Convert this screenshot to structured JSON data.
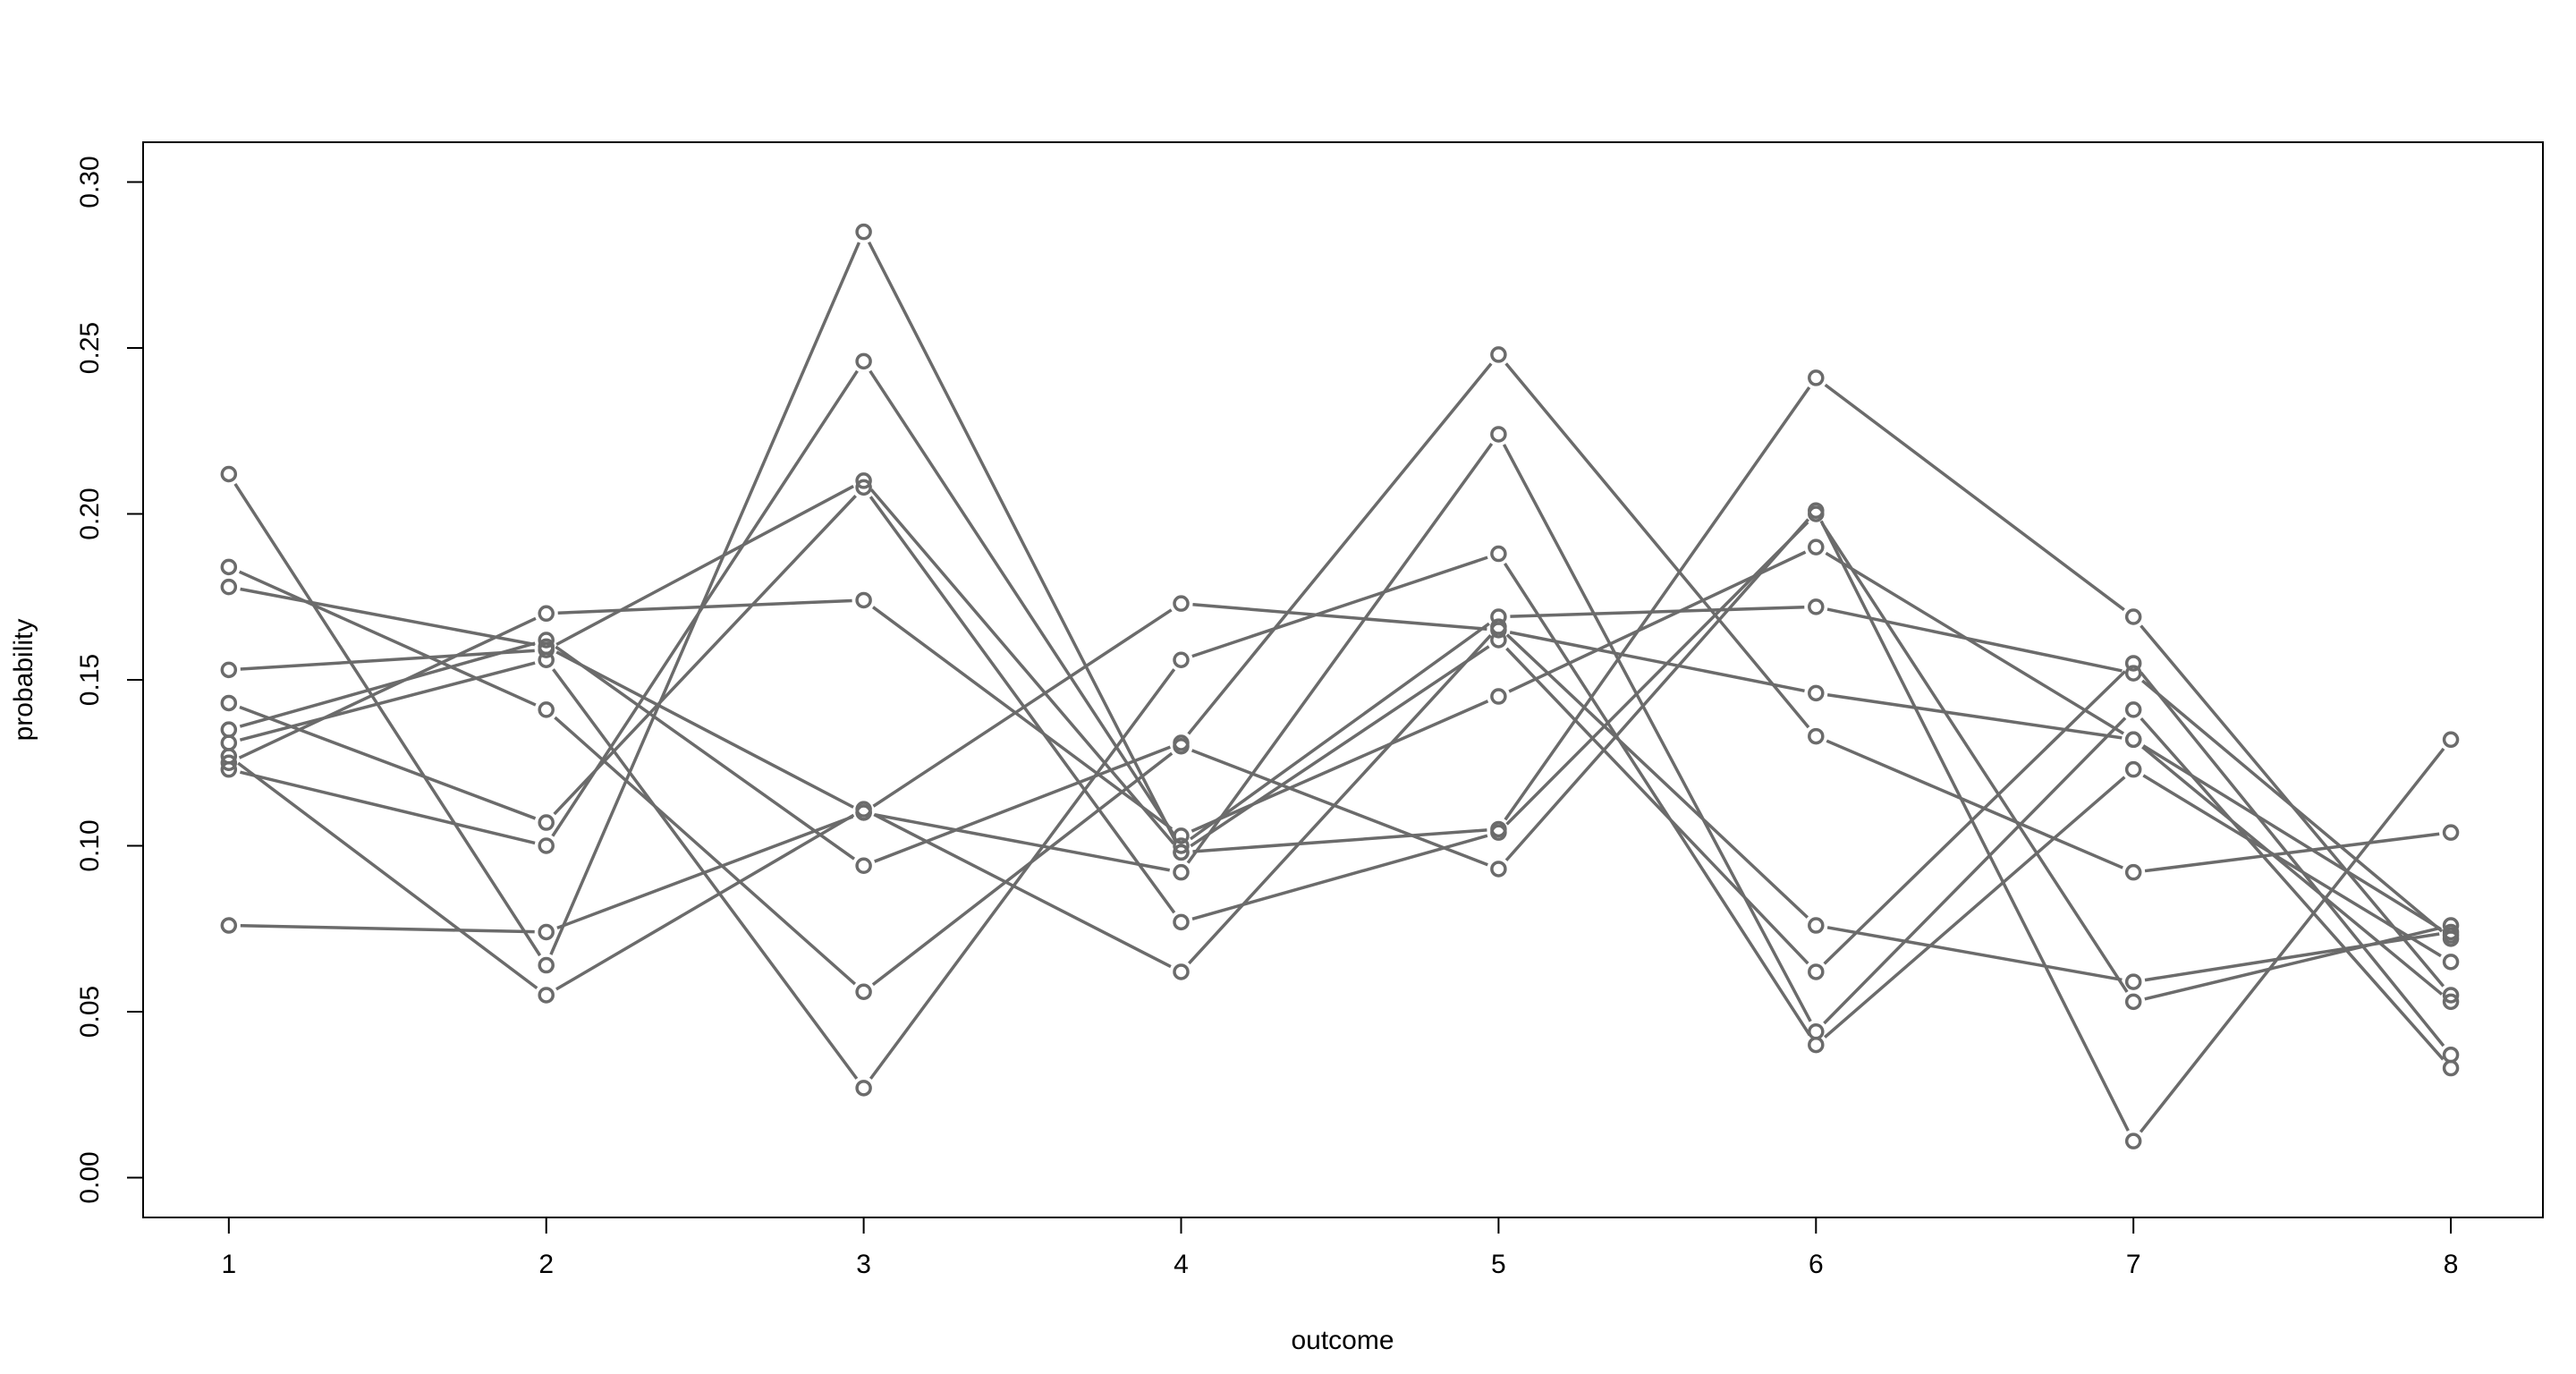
{
  "chart_data": {
    "type": "line",
    "title": "",
    "xlabel": "outcome",
    "ylabel": "probability",
    "x": [
      1,
      2,
      3,
      4,
      5,
      6,
      7,
      8
    ],
    "xticks": [
      "1",
      "2",
      "3",
      "4",
      "5",
      "6",
      "7",
      "8"
    ],
    "yticks": [
      "0.00",
      "0.05",
      "0.10",
      "0.15",
      "0.20",
      "0.25",
      "0.30"
    ],
    "xlim": [
      0.73,
      8.29
    ],
    "ylim": [
      -0.012,
      0.312
    ],
    "grid": false,
    "legend": "none",
    "colors": {
      "series": "#6b6b6b",
      "axis": "#000000"
    },
    "series": [
      {
        "values": [
          0.212,
          0.064,
          0.285,
          0.098,
          0.105,
          0.241,
          0.169,
          0.055
        ]
      },
      {
        "values": [
          0.184,
          0.141,
          0.056,
          0.13,
          0.093,
          0.201,
          0.011,
          0.132
        ]
      },
      {
        "values": [
          0.178,
          0.16,
          0.11,
          0.092,
          0.224,
          0.044,
          0.141,
          0.033
        ]
      },
      {
        "values": [
          0.153,
          0.159,
          0.21,
          0.098,
          0.162,
          0.062,
          0.155,
          0.037
        ]
      },
      {
        "values": [
          0.143,
          0.107,
          0.208,
          0.077,
          0.104,
          0.2,
          0.053,
          0.076
        ]
      },
      {
        "values": [
          0.135,
          0.162,
          0.094,
          0.131,
          0.248,
          0.133,
          0.092,
          0.104
        ]
      },
      {
        "values": [
          0.131,
          0.156,
          0.027,
          0.156,
          0.188,
          0.04,
          0.123,
          0.065
        ]
      },
      {
        "values": [
          0.127,
          0.055,
          0.111,
          0.062,
          0.166,
          0.076,
          0.059,
          0.074
        ]
      },
      {
        "values": [
          0.125,
          0.17,
          0.174,
          0.103,
          0.145,
          0.19,
          0.132,
          0.053
        ]
      },
      {
        "values": [
          0.123,
          0.1,
          0.246,
          0.1,
          0.169,
          0.172,
          0.152,
          0.072
        ]
      },
      {
        "values": [
          0.076,
          0.074,
          0.11,
          0.173,
          0.165,
          0.146,
          0.132,
          0.073
        ]
      }
    ]
  }
}
